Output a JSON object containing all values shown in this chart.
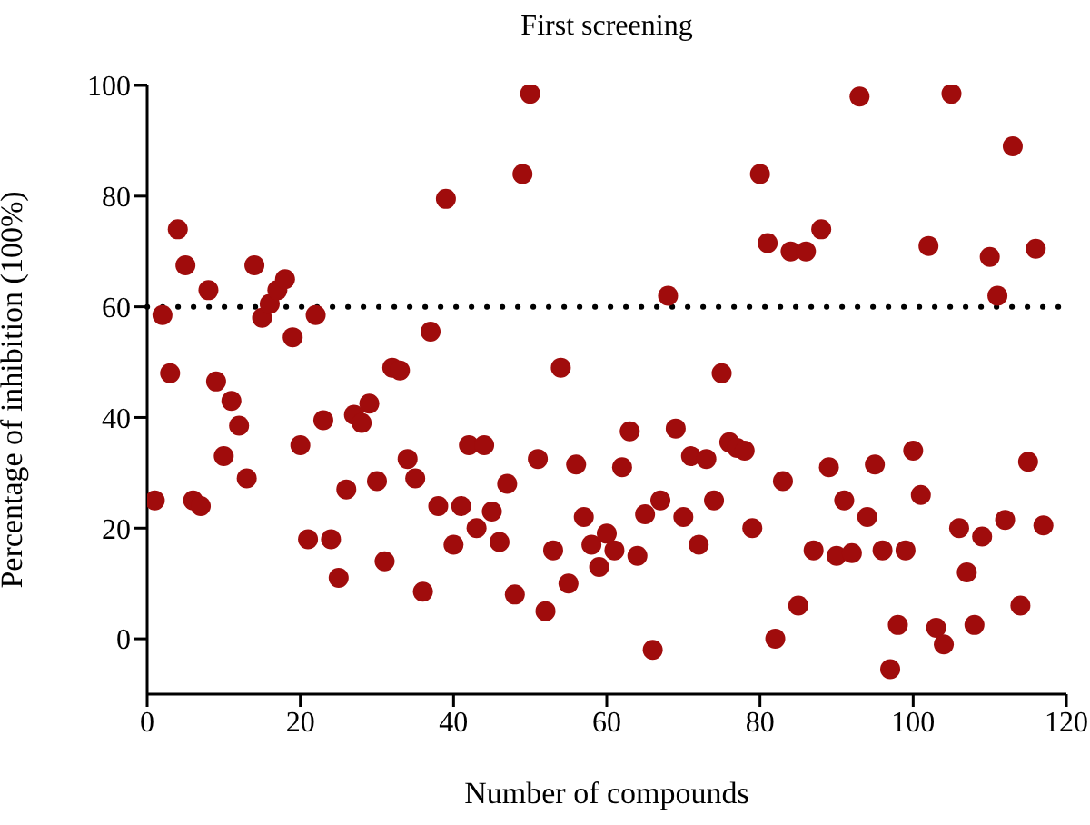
{
  "chart_data": {
    "type": "scatter",
    "title": "First screening",
    "xlabel": "Number of compounds",
    "ylabel": "Percentage of inhibition (100%)",
    "x": [
      1,
      2,
      3,
      4,
      5,
      6,
      7,
      8,
      9,
      10,
      11,
      12,
      13,
      14,
      15,
      16,
      17,
      18,
      19,
      20,
      21,
      22,
      23,
      24,
      25,
      26,
      27,
      28,
      29,
      30,
      31,
      32,
      33,
      34,
      35,
      36,
      37,
      38,
      39,
      40,
      41,
      42,
      43,
      44,
      45,
      46,
      47,
      48,
      49,
      50,
      51,
      52,
      53,
      54,
      55,
      56,
      57,
      58,
      59,
      60,
      61,
      62,
      63,
      64,
      65,
      66,
      67,
      68,
      69,
      70,
      71,
      72,
      73,
      74,
      75,
      76,
      77,
      78,
      79,
      80,
      81,
      82,
      83,
      84,
      85,
      86,
      87,
      88,
      89,
      90,
      91,
      92,
      93,
      94,
      95,
      96,
      97,
      98,
      99,
      100,
      101,
      102,
      103,
      104,
      105,
      106,
      107,
      108,
      109,
      110,
      111,
      112,
      113,
      114,
      115,
      116,
      117
    ],
    "series": [
      {
        "color": "#a00c0c",
        "values": [
          25,
          58.5,
          48,
          74,
          67.5,
          25,
          24,
          63,
          46.5,
          33,
          43,
          38.5,
          29,
          67.5,
          58,
          60.5,
          63,
          65,
          54.5,
          35,
          18,
          58.5,
          39.5,
          18,
          11,
          27,
          40.5,
          39,
          42.5,
          28.5,
          14,
          49,
          48.5,
          32.5,
          29,
          8.5,
          55.5,
          24,
          79.5,
          17,
          24,
          35,
          20,
          35,
          23,
          17.5,
          28,
          8,
          84,
          98.5,
          32.5,
          5,
          16,
          49,
          10,
          31.5,
          22,
          17,
          13,
          19,
          16,
          31,
          37.5,
          15,
          22.5,
          -2,
          25,
          62,
          38,
          22,
          33,
          17,
          32.5,
          25,
          48,
          35.5,
          34.5,
          34,
          20,
          84,
          71.5,
          0,
          28.5,
          70,
          6,
          70,
          16,
          74,
          31,
          15,
          25,
          15.5,
          98,
          22,
          31.5,
          16,
          -5.5,
          2.5,
          16,
          34,
          26,
          71,
          2,
          -1,
          98.5,
          20,
          12,
          2.5,
          18.5,
          69,
          62,
          21.5,
          89,
          6,
          32,
          70.5,
          20.5
        ]
      }
    ],
    "xlim": [
      0,
      120
    ],
    "xticks": [
      0,
      20,
      40,
      60,
      80,
      100,
      120
    ],
    "ylim": [
      -10,
      100
    ],
    "yticks": [
      0,
      20,
      40,
      60,
      80,
      100
    ],
    "ref_lines": [
      {
        "axis": "y",
        "value": 60,
        "color": "#000000",
        "line_style": "dotted"
      }
    ],
    "grid": false,
    "legend": false,
    "marker": "circle"
  }
}
